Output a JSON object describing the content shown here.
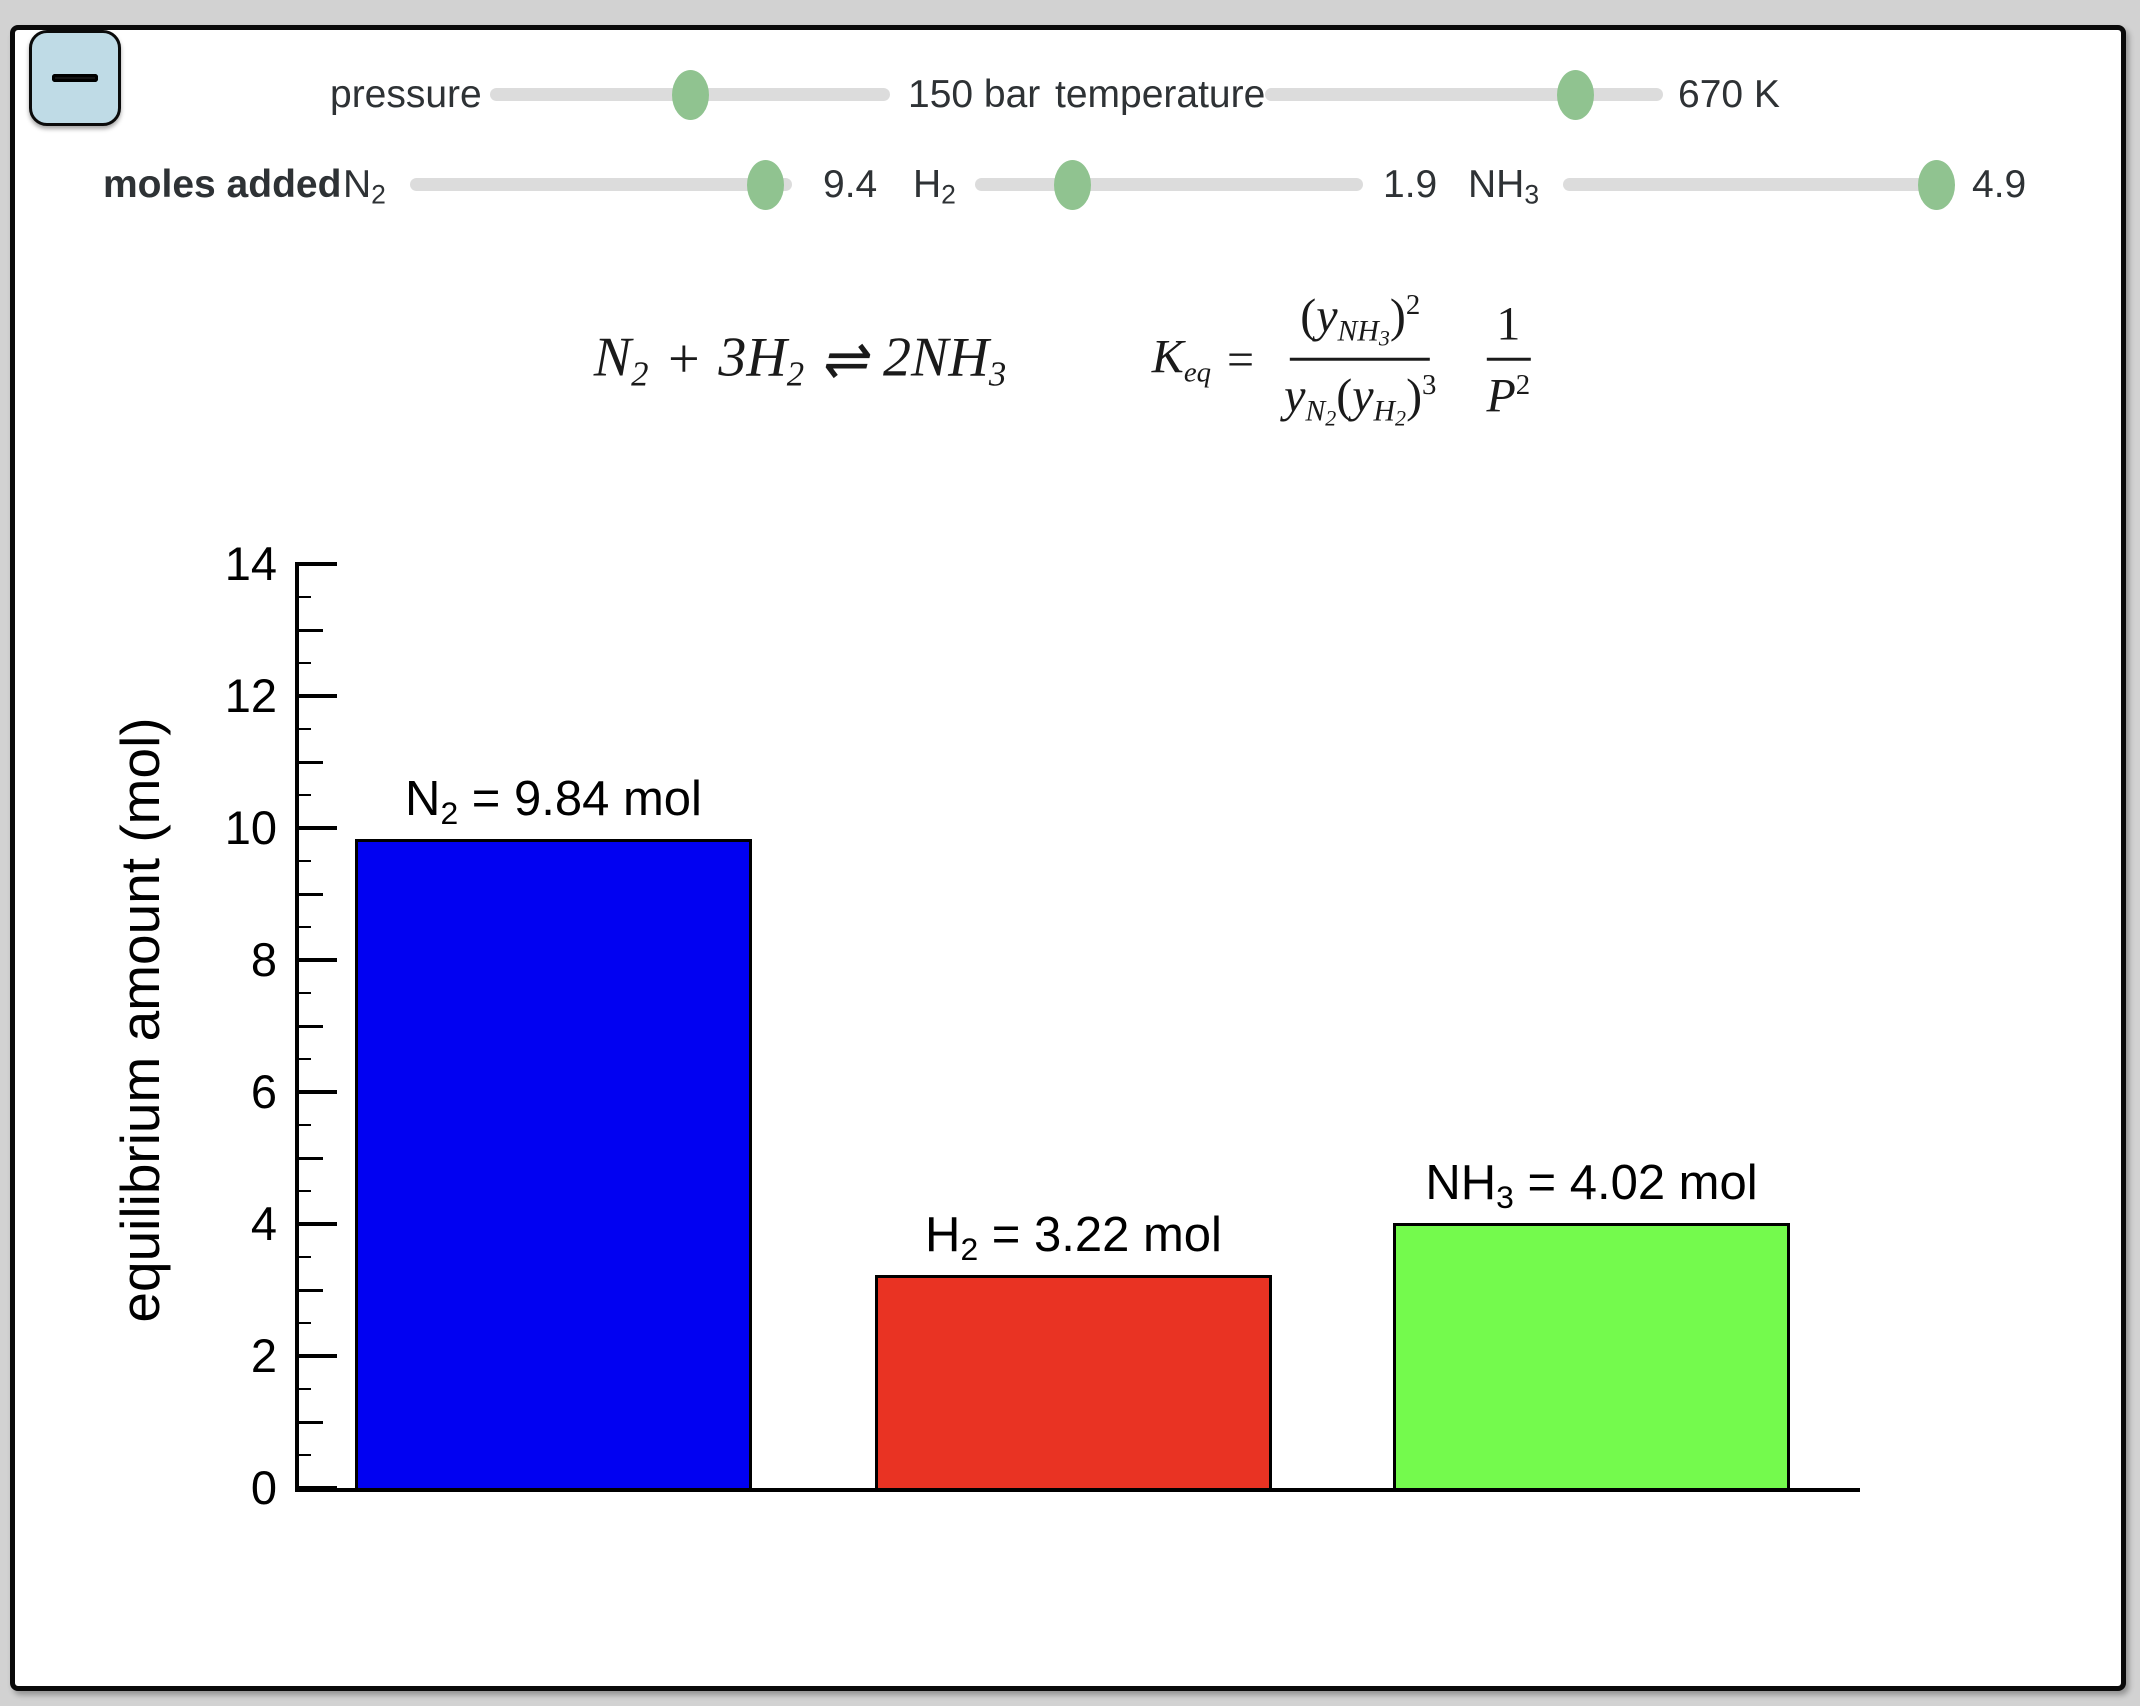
{
  "window": {
    "outer_background": "#d2d2d2",
    "canvas_background": "#ffffff",
    "canvas_border_color": "#0a0a0a"
  },
  "menu_button": {
    "icon": "hamburger-icon",
    "background": "#bfdbe6"
  },
  "sliders": {
    "track_color": "#dcdcdc",
    "thumb_color": "#90c390",
    "pressure": {
      "label": "pressure",
      "value": "150 bar",
      "fraction": 0.5
    },
    "temperature": {
      "label": "temperature",
      "value": "670 K",
      "fraction": 0.78
    },
    "moles_added_label": "moles added",
    "n2": {
      "base": "N",
      "sub": "2",
      "value": "9.4",
      "fraction": 0.93
    },
    "h2": {
      "base": "H",
      "sub": "2",
      "value": "1.9",
      "fraction": 0.25
    },
    "nh3": {
      "base": "NH",
      "sub": "3",
      "value": "4.9",
      "fraction": 0.97
    }
  },
  "reaction": {
    "n2_base": "N",
    "n2_sub": "2",
    "plus": "+",
    "h2_coeff": "3",
    "h2_base": "H",
    "h2_sub": "2",
    "harpoons": "⇌",
    "nh3_coeff": "2",
    "nh3_base": "NH",
    "nh3_sub": "3"
  },
  "keq": {
    "lhs_base": "K",
    "lhs_sub": "eq",
    "equals": "=",
    "num": {
      "open": "(",
      "y": "y",
      "sub_base": "NH",
      "sub_sub": "3",
      "close": ")",
      "sup": "2"
    },
    "den": {
      "y1": "y",
      "y1_sub_base": "N",
      "y1_sub_sub": "2",
      "open": "(",
      "y2": "y",
      "y2_sub_base": "H",
      "y2_sub_sub": "2",
      "close": ")",
      "sup": "3"
    },
    "pfrac": {
      "num": "1",
      "den_base": "P",
      "den_sup": "2"
    }
  },
  "chart_data": {
    "type": "bar",
    "categories": [
      "N2",
      "H2",
      "NH3"
    ],
    "values": [
      9.84,
      3.22,
      4.02
    ],
    "bar_colors": [
      "#0101f2",
      "#e93323",
      "#74fa4d"
    ],
    "labels": [
      {
        "base": "N",
        "sub": "2",
        "rest": " = 9.84 mol"
      },
      {
        "base": "H",
        "sub": "2",
        "rest": " = 3.22 mol"
      },
      {
        "base": "NH",
        "sub": "3",
        "rest": " = 4.02 mol"
      }
    ],
    "title": "",
    "xlabel": "",
    "ylabel": "equilibrium amount (mol)",
    "ylim": [
      0,
      14
    ],
    "major_tick_step": 2,
    "mid_tick_step": 1,
    "minor_tick_step": 0.5,
    "grid": false,
    "legend": false
  }
}
